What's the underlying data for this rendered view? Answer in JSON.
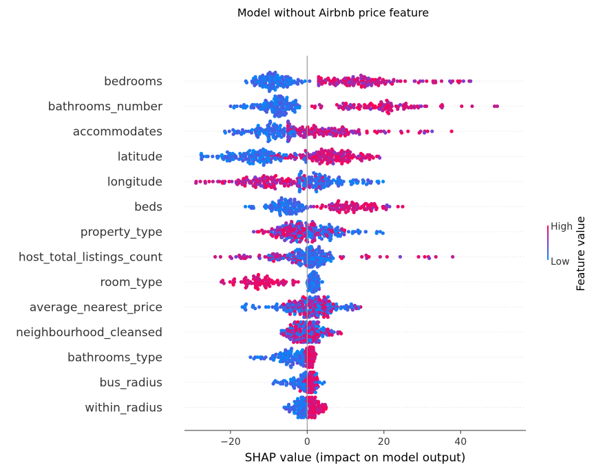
{
  "chart_data": {
    "type": "scatter",
    "subtype": "shap-beeswarm",
    "title": "Model without Airbnb price feature",
    "xlabel": "SHAP value (impact on model output)",
    "ylabel": "",
    "xlim": [
      -32,
      57
    ],
    "xticks": [
      -20,
      0,
      20,
      40
    ],
    "xtick_labels": [
      "−20",
      "0",
      "20",
      "40"
    ],
    "zero_line": 0,
    "colors": {
      "low": "#008bfb",
      "mid": "#7c3bd0",
      "high": "#ff0052",
      "zero_line": "#999999",
      "grid": "#dddddd"
    },
    "colorbar": {
      "title": "Feature value",
      "high_label": "High",
      "low_label": "Low"
    },
    "features": [
      {
        "name": "bedrooms",
        "low": {
          "range": [
            -18,
            2
          ],
          "center": -8.5,
          "count": 130
        },
        "high": {
          "range": [
            3,
            44
          ],
          "center": 12,
          "count": 150,
          "mix": 0.55
        }
      },
      {
        "name": "bathrooms_number",
        "low": {
          "range": [
            -20,
            -2
          ],
          "center": -7.5,
          "count": 150
        },
        "high": {
          "range": [
            0,
            53
          ],
          "center": 18,
          "count": 110,
          "mix": 0.75
        }
      },
      {
        "name": "accommodates",
        "low": {
          "range": [
            -22,
            -3
          ],
          "center": -9,
          "count": 120
        },
        "high": {
          "range": [
            -5,
            38
          ],
          "center": 2,
          "count": 150,
          "mix": 0.5
        }
      },
      {
        "name": "latitude",
        "low": {
          "range": [
            -28,
            0
          ],
          "center": -13,
          "count": 150
        },
        "high": {
          "range": [
            -10,
            20
          ],
          "center": 6,
          "count": 170,
          "mix": 0.8
        }
      },
      {
        "name": "longitude",
        "low": {
          "range": [
            -2,
            20
          ],
          "center": 2,
          "count": 130
        },
        "high": {
          "range": [
            -30,
            5
          ],
          "center": -10,
          "count": 150,
          "mix": 0.7
        }
      },
      {
        "name": "beds",
        "low": {
          "range": [
            -17,
            0
          ],
          "center": -5,
          "count": 110
        },
        "high": {
          "range": [
            0,
            26
          ],
          "center": 12,
          "count": 100,
          "mix": 0.8
        }
      },
      {
        "name": "property_type",
        "low": {
          "range": [
            -10,
            20
          ],
          "center": 3,
          "count": 120
        },
        "high": {
          "range": [
            -14,
            10
          ],
          "center": -3,
          "count": 150,
          "mix": 0.6
        }
      },
      {
        "name": "host_total_listings_count",
        "low": {
          "range": [
            -10,
            7
          ],
          "center": 1,
          "count": 170
        },
        "high": {
          "range": [
            -24,
            40
          ],
          "center": -8,
          "count": 70,
          "mix": 0.6
        }
      },
      {
        "name": "room_type",
        "low": {
          "range": [
            -1,
            4
          ],
          "center": 1.5,
          "count": 70
        },
        "high": {
          "range": [
            -23,
            -2
          ],
          "center": -12,
          "count": 90,
          "mix": 1.0
        }
      },
      {
        "name": "average_nearest_price",
        "low": {
          "range": [
            -17,
            14
          ],
          "center": 0,
          "count": 140
        },
        "high": {
          "range": [
            -7,
            14
          ],
          "center": 2,
          "count": 130,
          "mix": 0.6
        }
      },
      {
        "name": "neighbourhood_cleansed",
        "low": {
          "range": [
            -7,
            9
          ],
          "center": 0,
          "count": 120
        },
        "high": {
          "range": [
            -7,
            9
          ],
          "center": 0,
          "count": 150,
          "mix": 0.7
        }
      },
      {
        "name": "bathrooms_type",
        "low": {
          "range": [
            -15,
            -1
          ],
          "center": -4,
          "count": 100
        },
        "high": {
          "range": [
            -1,
            2.5
          ],
          "center": 0.8,
          "count": 90,
          "mix": 1.0
        }
      },
      {
        "name": "bus_radius",
        "low": {
          "range": [
            -9,
            5
          ],
          "center": -1,
          "count": 80
        },
        "high": {
          "range": [
            -2,
            3
          ],
          "center": 0.8,
          "count": 100,
          "mix": 1.0
        }
      },
      {
        "name": "within_radius",
        "low": {
          "range": [
            -6,
            0
          ],
          "center": -1.5,
          "count": 90
        },
        "high": {
          "range": [
            0,
            5
          ],
          "center": 1.5,
          "count": 100,
          "mix": 1.0
        }
      }
    ]
  }
}
